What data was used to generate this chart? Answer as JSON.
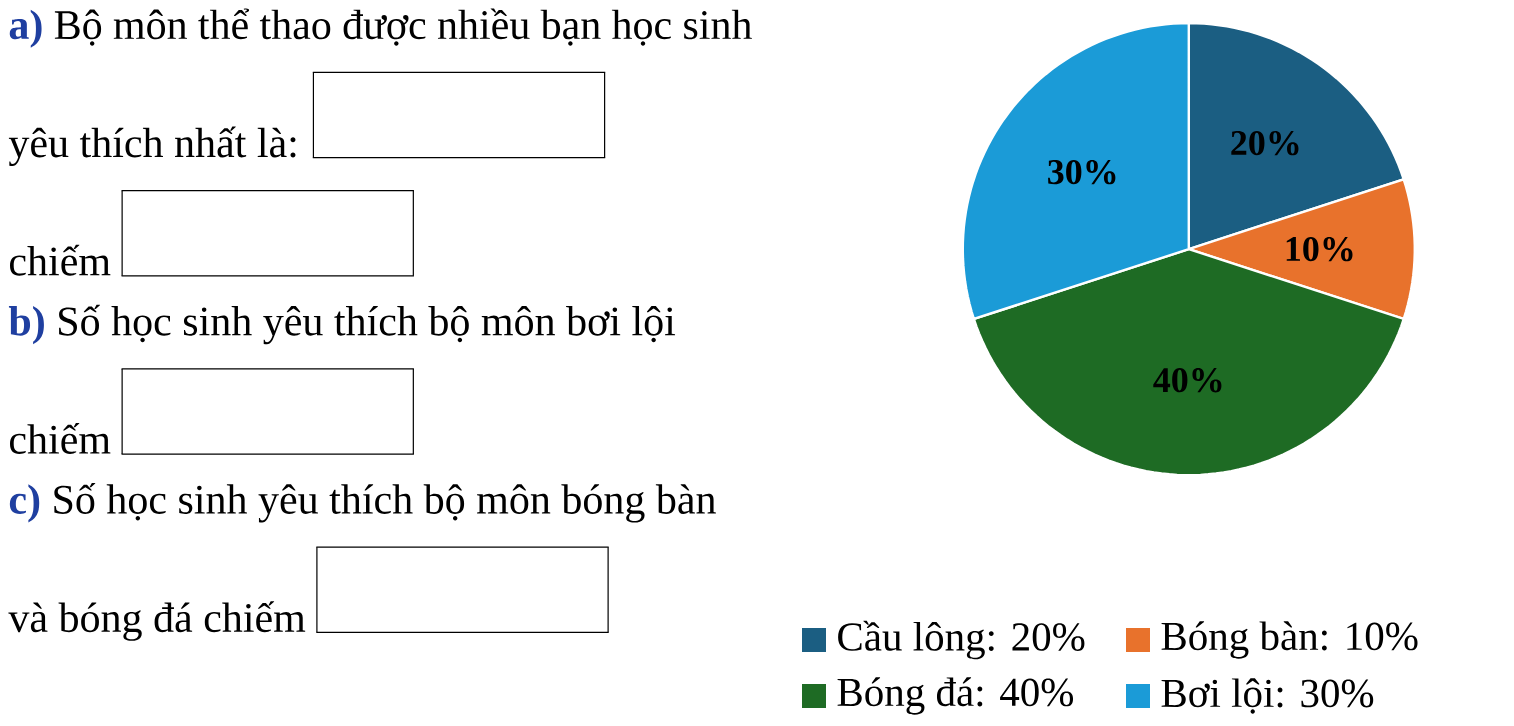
{
  "chart_data": {
    "type": "pie",
    "categories": [
      "Cầu lông: 20%",
      "Bóng bàn: 10%",
      "Bóng đá: 40%",
      "Bơi lội: 30%"
    ],
    "values": [
      20,
      10,
      40,
      30
    ],
    "value_labels": [
      "20%",
      "10%",
      "40%",
      "30%"
    ],
    "colors": [
      "#1b5e82",
      "#e8722c",
      "#1e6b24",
      "#1b9bd7"
    ],
    "legend": "bottom",
    "annotations": [
      "a)",
      "Bộ môn thể thao được nhiều bạn học sinh yêu thích nhất là:",
      "chiếm",
      "b)",
      "Số học sinh yêu thích bộ môn bơi lội chiếm",
      "c)",
      "Số học sinh yêu thích bộ môn bóng bàn và bóng đá chiếm"
    ]
  }
}
